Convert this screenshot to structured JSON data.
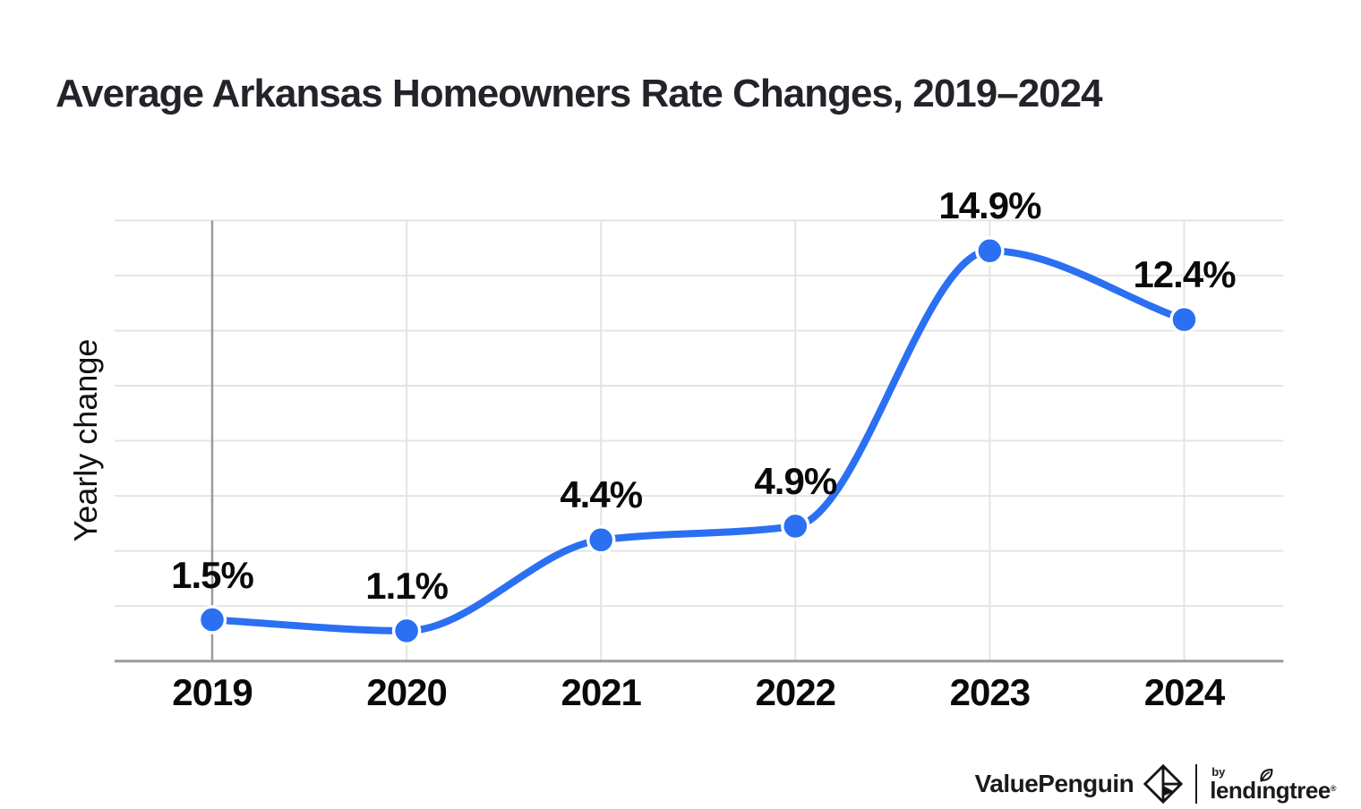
{
  "title": "Average Arkansas Homeowners Rate Changes, 2019–2024",
  "chart_data": {
    "type": "line",
    "categories": [
      "2019",
      "2020",
      "2021",
      "2022",
      "2023",
      "2024"
    ],
    "values": [
      1.5,
      1.1,
      4.4,
      4.9,
      14.9,
      12.4
    ],
    "point_labels": [
      "1.5%",
      "1.1%",
      "4.4%",
      "4.9%",
      "14.9%",
      "12.4%"
    ],
    "xlabel": "",
    "ylabel": "Yearly change",
    "ylim": [
      0,
      16
    ],
    "grid_step_pct": 2,
    "grid_on": true,
    "smooth": true,
    "legend": "none",
    "line_color": "#2b6ff2",
    "point_color": "#2b6ff2",
    "grid_color": "#e4e4e4",
    "axis_color": "#9b9b9b",
    "label_color": "#0a0a0a"
  },
  "footer": {
    "brand": "ValuePenguin",
    "by_label": "by",
    "brand2": "lendingtree",
    "trademark": "®"
  }
}
